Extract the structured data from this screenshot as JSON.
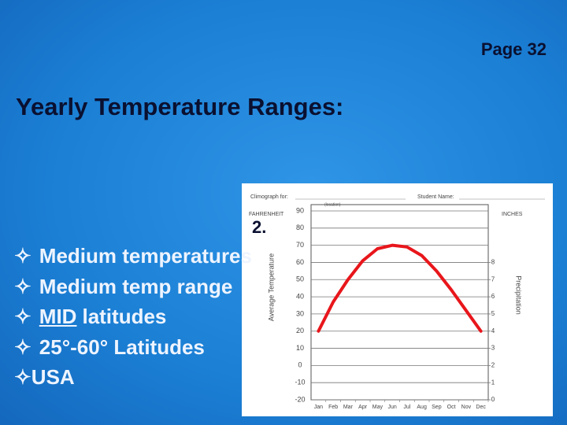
{
  "page": "Page 32",
  "title": "Yearly Temperature Ranges:",
  "marker": "2.",
  "bullets": [
    {
      "symbol": "✧",
      "text": "Medium temperatures"
    },
    {
      "symbol": "✧",
      "text": "Medium temp range"
    },
    {
      "symbol": "✧",
      "underlined": "MID",
      "text": "latitudes"
    },
    {
      "symbol": "✧",
      "text": "25°-60° Latitudes"
    },
    {
      "symbol": "✧",
      "text": "USA"
    }
  ],
  "chart_data": {
    "type": "line",
    "title": "Climograph for:",
    "location_label": "(location)",
    "student_label": "Student Name:",
    "y_unit": "FAHRENHEIT",
    "y2_unit": "INCHES",
    "y_label": "Average Temperature",
    "y2_label": "Precipitation",
    "categories": [
      "Jan",
      "Feb",
      "Mar",
      "Apr",
      "May",
      "Jun",
      "Jul",
      "Aug",
      "Sep",
      "Oct",
      "Nov",
      "Dec"
    ],
    "values": [
      20,
      37,
      50,
      61,
      68,
      70,
      69,
      64,
      55,
      44,
      32,
      20
    ],
    "color": "#e8161b",
    "ylim": [
      -20,
      90
    ],
    "yticks": [
      -20,
      -10,
      0,
      10,
      20,
      30,
      40,
      50,
      60,
      70,
      80,
      90
    ],
    "y2lim": [
      0,
      11
    ],
    "y2ticks": [
      0,
      1,
      2,
      3,
      4,
      5,
      6,
      7,
      8
    ],
    "grid": true
  }
}
